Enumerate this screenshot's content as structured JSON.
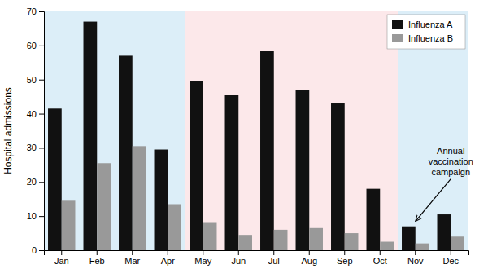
{
  "chart_data": {
    "type": "bar",
    "categories": [
      "Jan",
      "Feb",
      "Mar",
      "Apr",
      "May",
      "Jun",
      "Jul",
      "Aug",
      "Sep",
      "Oct",
      "Nov",
      "Dec"
    ],
    "series": [
      {
        "name": "Influenza A",
        "color": "#111111",
        "values": [
          41.5,
          67,
          57,
          29.5,
          49.5,
          45.5,
          58.5,
          47,
          43,
          18,
          7,
          10.5
        ]
      },
      {
        "name": "Influenza B",
        "color": "#999999",
        "values": [
          14.5,
          25.5,
          30.5,
          13.5,
          8,
          4.5,
          6,
          6.5,
          5,
          2.5,
          2,
          4
        ]
      }
    ],
    "ylabel": "Hospital admissions",
    "ylim": [
      0,
      70
    ],
    "yticks": [
      0,
      10,
      20,
      30,
      40,
      50,
      60,
      70
    ],
    "grid": false,
    "legend": "upper right",
    "regions": [
      {
        "start": "Jan",
        "end": "Apr",
        "color": "#dceef8"
      },
      {
        "start": "May",
        "end": "Oct",
        "color": "#fce8ea"
      },
      {
        "start": "Nov",
        "end": "Dec",
        "color": "#dceef8"
      }
    ],
    "annotations": [
      {
        "text": "Annual\nvaccination\ncampaign",
        "x": "Nov",
        "y": 8
      }
    ]
  }
}
